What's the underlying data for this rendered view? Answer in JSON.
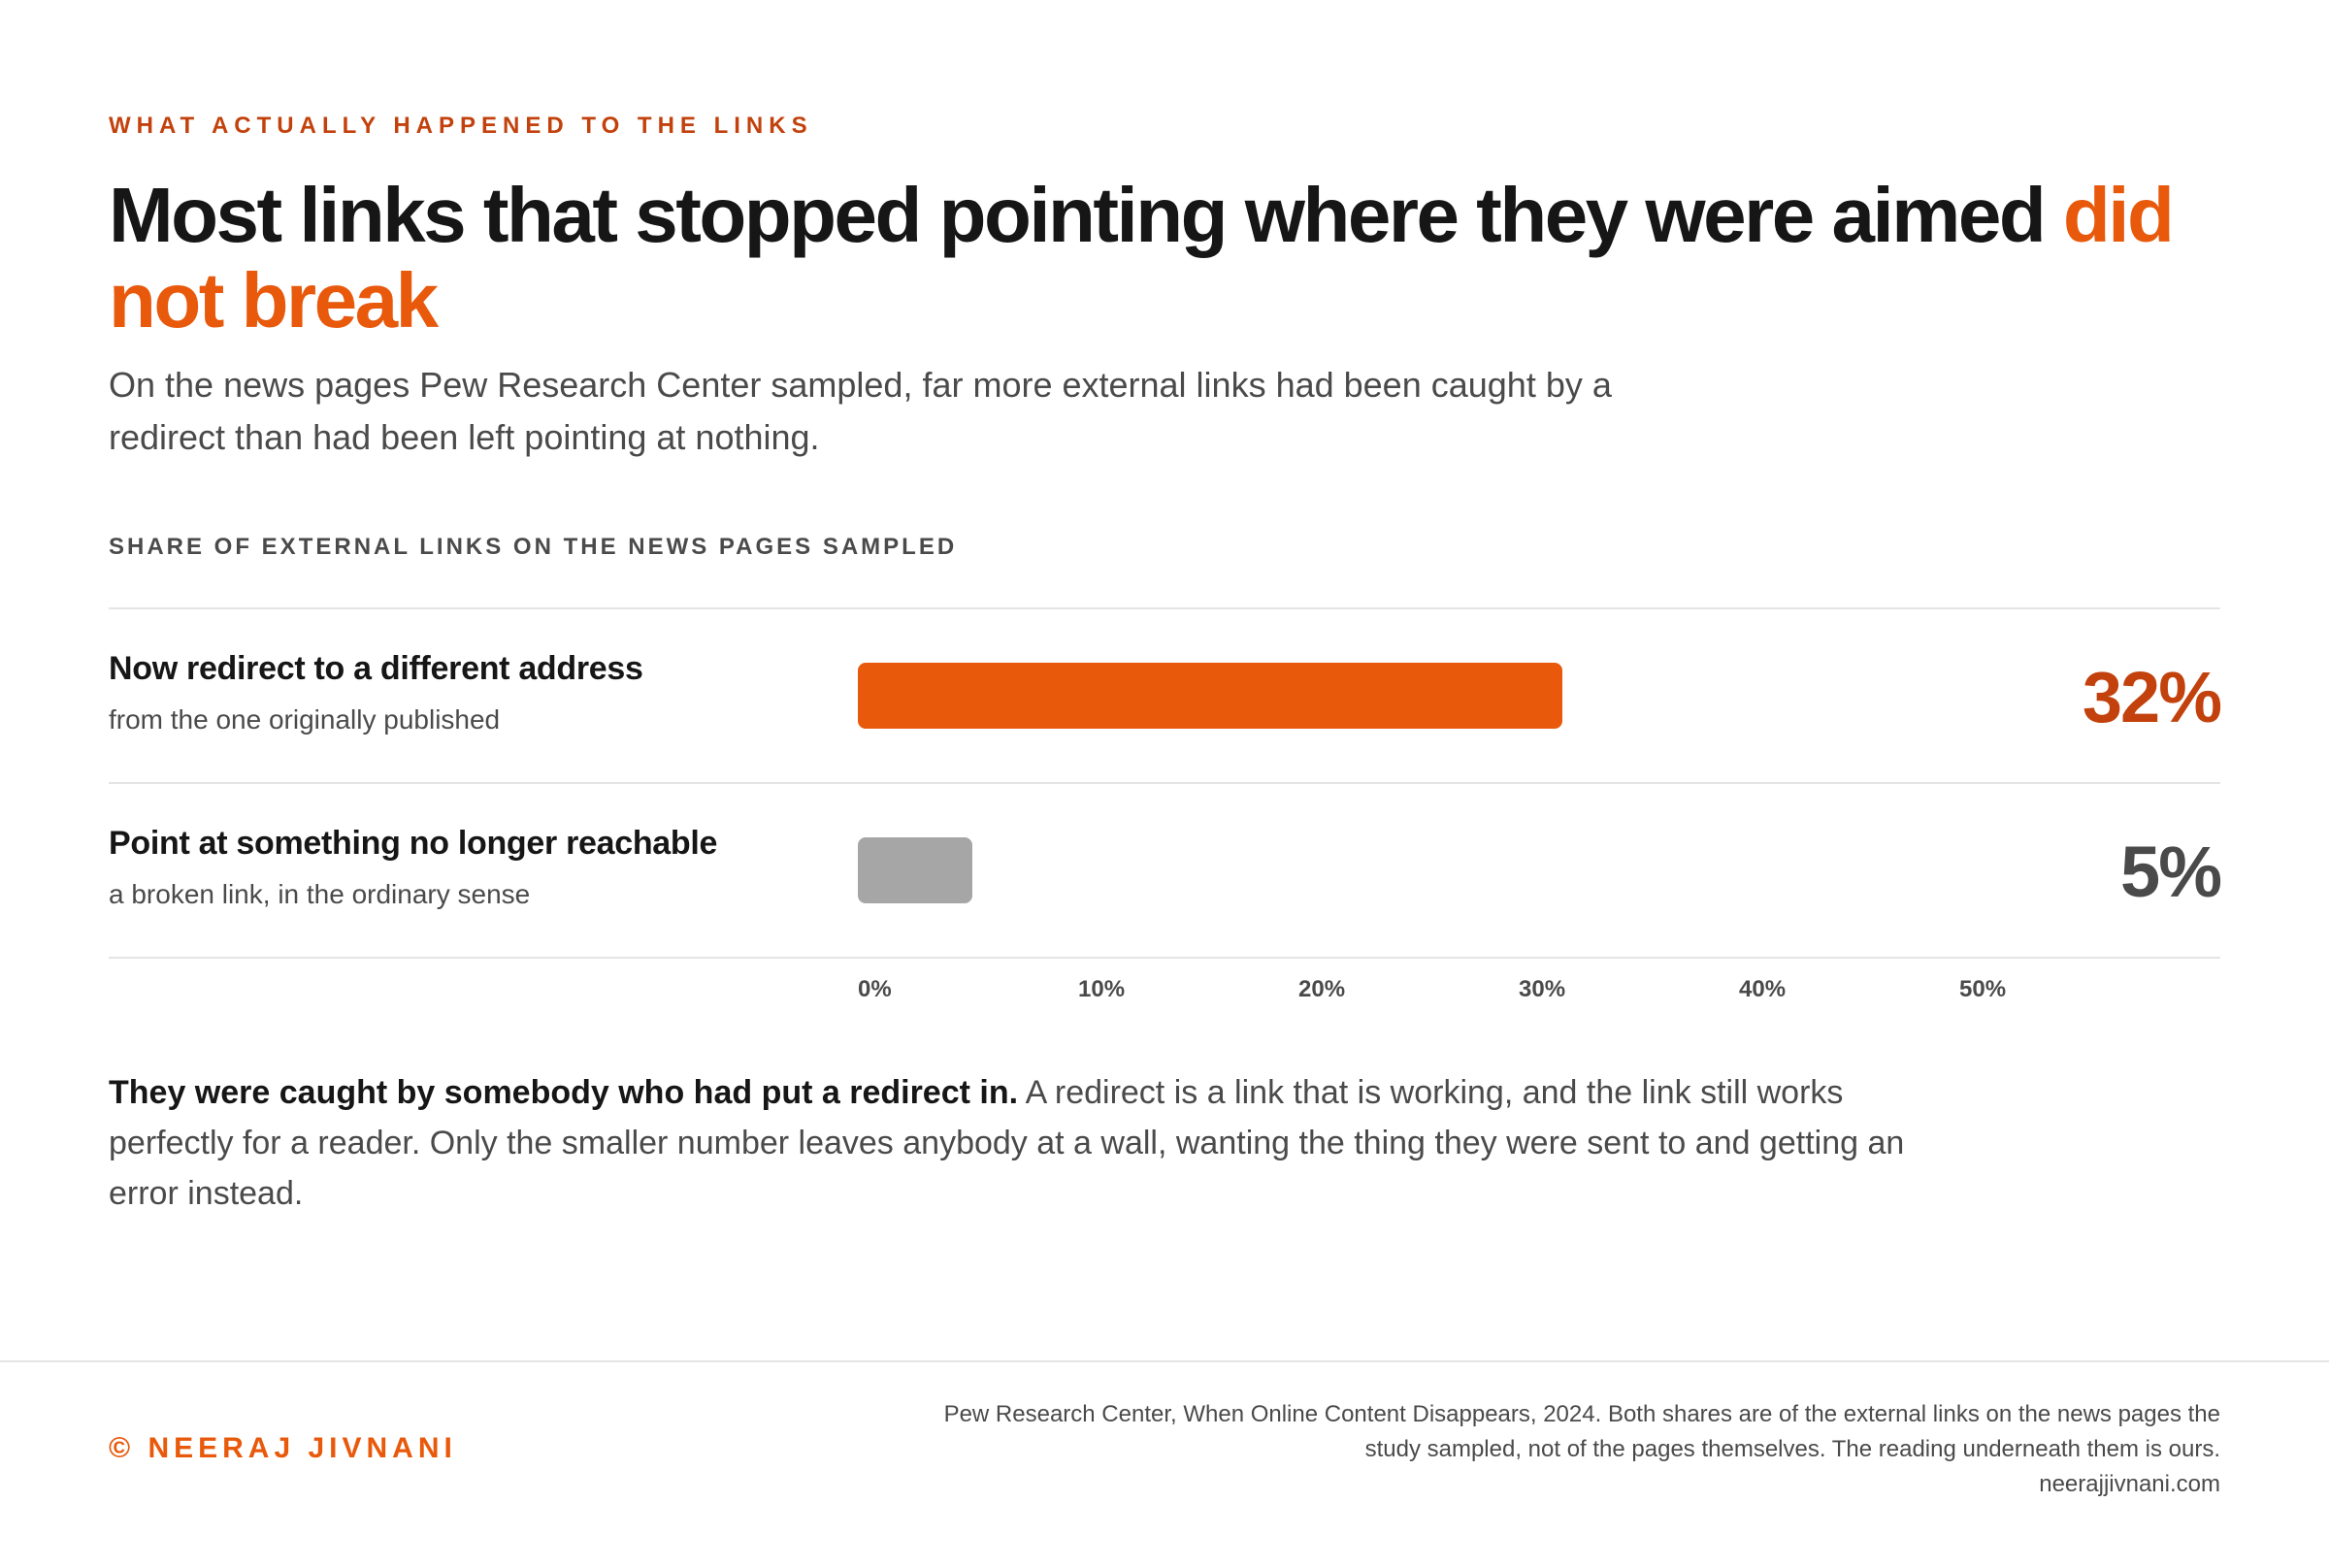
{
  "eyebrow": "WHAT ACTUALLY HAPPENED TO THE LINKS",
  "headline": {
    "main": "Most links that stopped pointing where they were aimed ",
    "accent": "did not break"
  },
  "dek": "On the news pages Pew Research Center sampled, far more external links had been caught by a redirect than had been left pointing at nothing.",
  "chart_data": {
    "type": "bar",
    "orientation": "horizontal",
    "title": "SHARE OF EXTERNAL LINKS ON THE NEWS PAGES SAMPLED",
    "categories": [
      "Now redirect to a different address",
      "Point at something no longer reachable"
    ],
    "subtitles": [
      "from the one originally published",
      "a broken link, in the ordinary sense"
    ],
    "values": [
      32,
      5
    ],
    "value_labels": [
      "32%",
      "5%"
    ],
    "colors": [
      "#e8590c",
      "#a6a6a6"
    ],
    "label_colors": [
      "#c2410c",
      "#4a4a4a"
    ],
    "xlim": [
      0,
      60
    ],
    "x_ticks": [
      0,
      10,
      20,
      30,
      40,
      50
    ],
    "x_tick_labels": [
      "0%",
      "10%",
      "20%",
      "30%",
      "40%",
      "50%"
    ],
    "grid": false,
    "legend": "none"
  },
  "takeaway": {
    "lead": "They were caught by somebody who had put a redirect in.",
    "body": " A redirect is a link that is working, and the link still works perfectly for a reader. Only the smaller number leaves anybody at a wall, wanting the thing they were sent to and getting an error instead."
  },
  "footer": {
    "brand": "© NEERAJ JIVNANI",
    "source_line1": "Pew Research Center, When Online Content Disappears, 2024. Both shares are of the external links on the news pages the",
    "source_line2": "study sampled, not of the pages themselves. The reading underneath them is ours.",
    "site": "neerajjivnani.com"
  }
}
